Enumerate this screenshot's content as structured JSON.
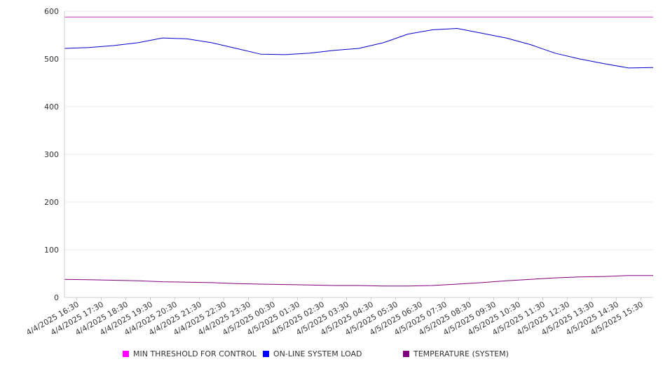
{
  "chart_data": {
    "type": "line",
    "title": "",
    "xlabel": "",
    "ylabel": "",
    "ylim": [
      0,
      600
    ],
    "yticks": [
      0,
      100,
      200,
      300,
      400,
      500,
      600
    ],
    "grid": true,
    "legend_position": "bottom",
    "x_tick_labels": [
      "4/4/2025 16:30",
      "4/4/2025 17:30",
      "4/4/2025 18:30",
      "4/4/2025 19:30",
      "4/4/2025 20:30",
      "4/4/2025 21:30",
      "4/4/2025 22:30",
      "4/4/2025 23:30",
      "4/5/2025 00:30",
      "4/5/2025 01:30",
      "4/5/2025 02:30",
      "4/5/2025 03:30",
      "4/5/2025 04:30",
      "4/5/2025 05:30",
      "4/5/2025 06:30",
      "4/5/2025 07:30",
      "4/5/2025 08:30",
      "4/5/2025 09:30",
      "4/5/2025 10:30",
      "4/5/2025 11:30",
      "4/5/2025 12:30",
      "4/5/2025 13:30",
      "4/5/2025 14:30",
      "4/5/2025 15:30"
    ],
    "x": [
      "4/4/2025 16:00",
      "4/4/2025 17:00",
      "4/4/2025 18:00",
      "4/4/2025 19:00",
      "4/4/2025 20:00",
      "4/4/2025 21:00",
      "4/4/2025 22:00",
      "4/4/2025 23:00",
      "4/5/2025 00:00",
      "4/5/2025 01:00",
      "4/5/2025 02:00",
      "4/5/2025 03:00",
      "4/5/2025 04:00",
      "4/5/2025 05:00",
      "4/5/2025 06:00",
      "4/5/2025 07:00",
      "4/5/2025 08:00",
      "4/5/2025 09:00",
      "4/5/2025 10:00",
      "4/5/2025 11:00",
      "4/5/2025 12:00",
      "4/5/2025 13:00",
      "4/5/2025 14:00",
      "4/5/2025 15:00",
      "4/5/2025 16:00"
    ],
    "series": [
      {
        "name": "MIN THRESHOLD FOR CONTROL",
        "color": "#cc33cc",
        "values": [
          588,
          588,
          588,
          588,
          588,
          588,
          588,
          588,
          588,
          588,
          588,
          588,
          588,
          588,
          588,
          588,
          588,
          588,
          588,
          588,
          588,
          588,
          588,
          588,
          588
        ]
      },
      {
        "name": "ON-LINE SYSTEM LOAD",
        "color": "#0000cc",
        "values": [
          522,
          524,
          528,
          534,
          544,
          542,
          534,
          522,
          510,
          509,
          512,
          518,
          522,
          534,
          552,
          561,
          564,
          554,
          544,
          530,
          512,
          500,
          490,
          481,
          482
        ]
      },
      {
        "name": "TEMPERATURE (SYSTEM)",
        "color": "#800080",
        "values": [
          38,
          37,
          36,
          35,
          33,
          32,
          31,
          29,
          28,
          27,
          26,
          25,
          25,
          24,
          24,
          25,
          28,
          31,
          35,
          38,
          41,
          43,
          44,
          46,
          46
        ]
      }
    ]
  }
}
